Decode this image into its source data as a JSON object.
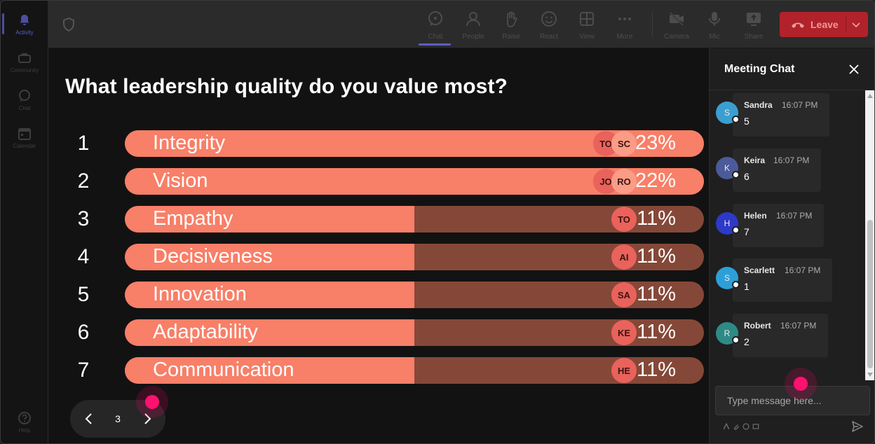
{
  "rail": {
    "items": [
      {
        "label": "Activity",
        "icon": "bell-icon",
        "active": true
      },
      {
        "label": "Community",
        "icon": "community-icon",
        "active": false
      },
      {
        "label": "Chat",
        "icon": "chat-icon",
        "active": false
      },
      {
        "label": "Calendar",
        "icon": "calendar-icon",
        "active": false
      }
    ],
    "help": {
      "label": "Help",
      "icon": "help-icon"
    }
  },
  "toolbar": {
    "chat": "Chat",
    "people": "People",
    "raise": "Raise",
    "react": "React",
    "view": "View",
    "more": "More",
    "camera": "Camera",
    "mic": "Mic",
    "share": "Share",
    "leave": "Leave",
    "active": "Chat"
  },
  "poll": {
    "question": "What leadership quality do you value most?",
    "options": [
      {
        "num": "1",
        "label": "Integrity",
        "pct": "23%",
        "value": 23,
        "avatars": [
          "TO",
          "SC"
        ]
      },
      {
        "num": "2",
        "label": "Vision",
        "pct": "22%",
        "value": 22,
        "avatars": [
          "JO",
          "RO"
        ]
      },
      {
        "num": "3",
        "label": "Empathy",
        "pct": "11%",
        "value": 11,
        "avatars": [
          "TO"
        ]
      },
      {
        "num": "4",
        "label": "Decisiveness",
        "pct": "11%",
        "value": 11,
        "avatars": [
          "AI"
        ]
      },
      {
        "num": "5",
        "label": "Innovation",
        "pct": "11%",
        "value": 11,
        "avatars": [
          "SA"
        ]
      },
      {
        "num": "6",
        "label": "Adaptability",
        "pct": "11%",
        "value": 11,
        "avatars": [
          "KE"
        ]
      },
      {
        "num": "7",
        "label": "Communication",
        "pct": "11%",
        "value": 11,
        "avatars": [
          "HE"
        ]
      }
    ],
    "fill_fractions": [
      1.0,
      1.0,
      0.5,
      0.5,
      0.5,
      0.5,
      0.5
    ]
  },
  "pager": {
    "page": "3"
  },
  "chat": {
    "title": "Meeting Chat",
    "messages": [
      {
        "initial": "S",
        "sender": "Sandra",
        "time": "16:07 PM",
        "text": "5",
        "color": "#3a9fd0"
      },
      {
        "initial": "K",
        "sender": "Keira",
        "time": "16:07 PM",
        "text": "6",
        "color": "#4c5a9a"
      },
      {
        "initial": "H",
        "sender": "Helen",
        "time": "16:07 PM",
        "text": "7",
        "color": "#2d39c8"
      },
      {
        "initial": "S",
        "sender": "Scarlett",
        "time": "16:07 PM",
        "text": "1",
        "color": "#2d9fd8"
      },
      {
        "initial": "R",
        "sender": "Robert",
        "time": "16:07 PM",
        "text": "2",
        "color": "#2e8a86"
      }
    ],
    "placeholder": "Type message here..."
  },
  "colors": {
    "bar_fill": "#f87f68",
    "bar_track": "#854838",
    "leave_red": "#b1222a",
    "accent": "#5b5fc7"
  }
}
